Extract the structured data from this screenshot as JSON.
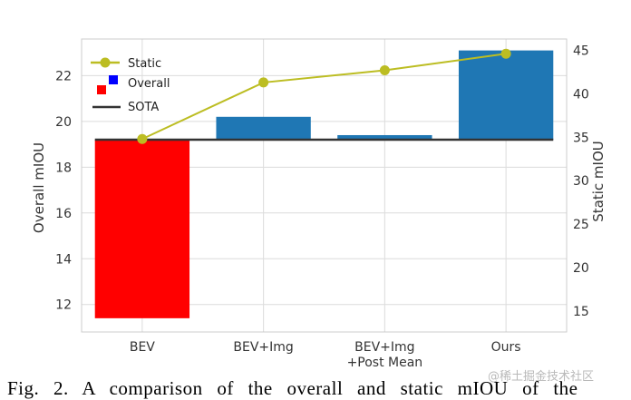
{
  "chart_data": {
    "type": "bar",
    "categories": [
      "BEV",
      "BEV+Img",
      "BEV+Img\n+Post Mean",
      "Ours"
    ],
    "series": [
      {
        "name": "Overall",
        "axis": "left",
        "chart_type": "bar",
        "values": [
          11.4,
          20.2,
          19.4,
          23.1
        ],
        "bar_colors": [
          "#ff0000",
          "#1f77b4",
          "#1f77b4",
          "#1f77b4"
        ]
      },
      {
        "name": "Static",
        "axis": "right",
        "chart_type": "line",
        "values": [
          34.8,
          41.3,
          42.7,
          44.6
        ],
        "color": "#bcbd22"
      }
    ],
    "reference_line": {
      "name": "SOTA",
      "value": 19.2,
      "axis": "left",
      "color": "#333333"
    },
    "ylabel": "Overall mIOU",
    "ylabel_right": "Static mIOU",
    "ylim": [
      10.8,
      23.6
    ],
    "ylim_right": [
      12.6,
      46.3
    ],
    "yticks": [
      12,
      14,
      16,
      18,
      20,
      22
    ],
    "yticks_right": [
      15,
      20,
      25,
      30,
      35,
      40,
      45
    ],
    "grid": true,
    "legend_position": "top-left",
    "legend": [
      "Static",
      "Overall",
      "SOTA"
    ],
    "colors": {
      "red_bar": "#ff0000",
      "blue_bar": "#1f77b4",
      "static_line": "#bcbd22",
      "sota": "#333333",
      "overall_marker": "#0000ff"
    }
  },
  "caption": "Fig. 2. A comparison of the overall and static mIOU of the",
  "watermark": "@稀土掘金技术社区"
}
